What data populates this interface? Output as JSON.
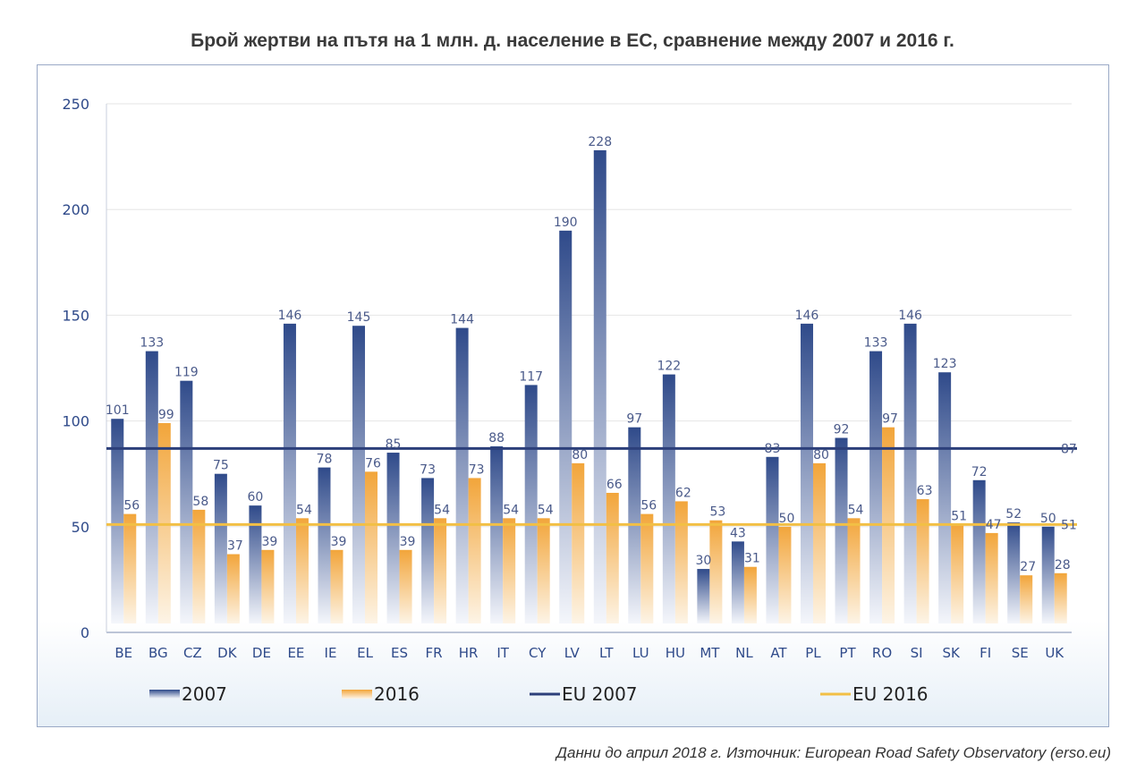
{
  "title": "Брой жертви на пътя на 1 млн. д. население в ЕС, сравнение между 2007 и 2016 г.",
  "source": "Данни до април 2018 г. Източник: European Road Safety Observatory (erso.eu)",
  "colors": {
    "bar2007_top": "#2f4a8a",
    "bar2007_bottom": "#f4f6fb",
    "bar2016_top": "#f2a53a",
    "bar2016_bottom": "#fdf4e6",
    "eu2007_line": "#2c3f7a",
    "eu2016_line": "#f2bf45",
    "axis_text": "#2f4a8a",
    "grid": "#e6e6e6",
    "label": "#4a5a8a"
  },
  "chart_data": {
    "type": "bar",
    "title": "Брой жертви на пътя на 1 млн. д. население в ЕС, сравнение между 2007 и 2016 г.",
    "categories": [
      "BE",
      "BG",
      "CZ",
      "DK",
      "DE",
      "EE",
      "IE",
      "EL",
      "ES",
      "FR",
      "HR",
      "IT",
      "CY",
      "LV",
      "LT",
      "LU",
      "HU",
      "MT",
      "NL",
      "AT",
      "PL",
      "PT",
      "RO",
      "SI",
      "SK",
      "FI",
      "SE",
      "UK"
    ],
    "series": [
      {
        "name": "2007",
        "values": [
          101,
          133,
          119,
          75,
          60,
          146,
          78,
          145,
          85,
          73,
          144,
          88,
          117,
          190,
          228,
          97,
          122,
          30,
          43,
          83,
          146,
          92,
          133,
          146,
          123,
          72,
          52,
          50
        ]
      },
      {
        "name": "2016",
        "values": [
          56,
          99,
          58,
          37,
          39,
          54,
          39,
          76,
          39,
          54,
          73,
          54,
          54,
          80,
          66,
          56,
          62,
          53,
          31,
          50,
          80,
          54,
          97,
          63,
          51,
          47,
          27,
          28
        ]
      }
    ],
    "reference_lines": [
      {
        "name": "EU 2007",
        "value": 87,
        "label": "87"
      },
      {
        "name": "EU 2016",
        "value": 51,
        "label": "51"
      }
    ],
    "ylim": [
      0,
      250
    ],
    "yticks": [
      0,
      50,
      100,
      150,
      200,
      250
    ],
    "xlabel": "",
    "ylabel": "",
    "grid": true,
    "legend": [
      "2007",
      "2016",
      "EU 2007",
      "EU 2016"
    ],
    "legend_position": "bottom"
  }
}
